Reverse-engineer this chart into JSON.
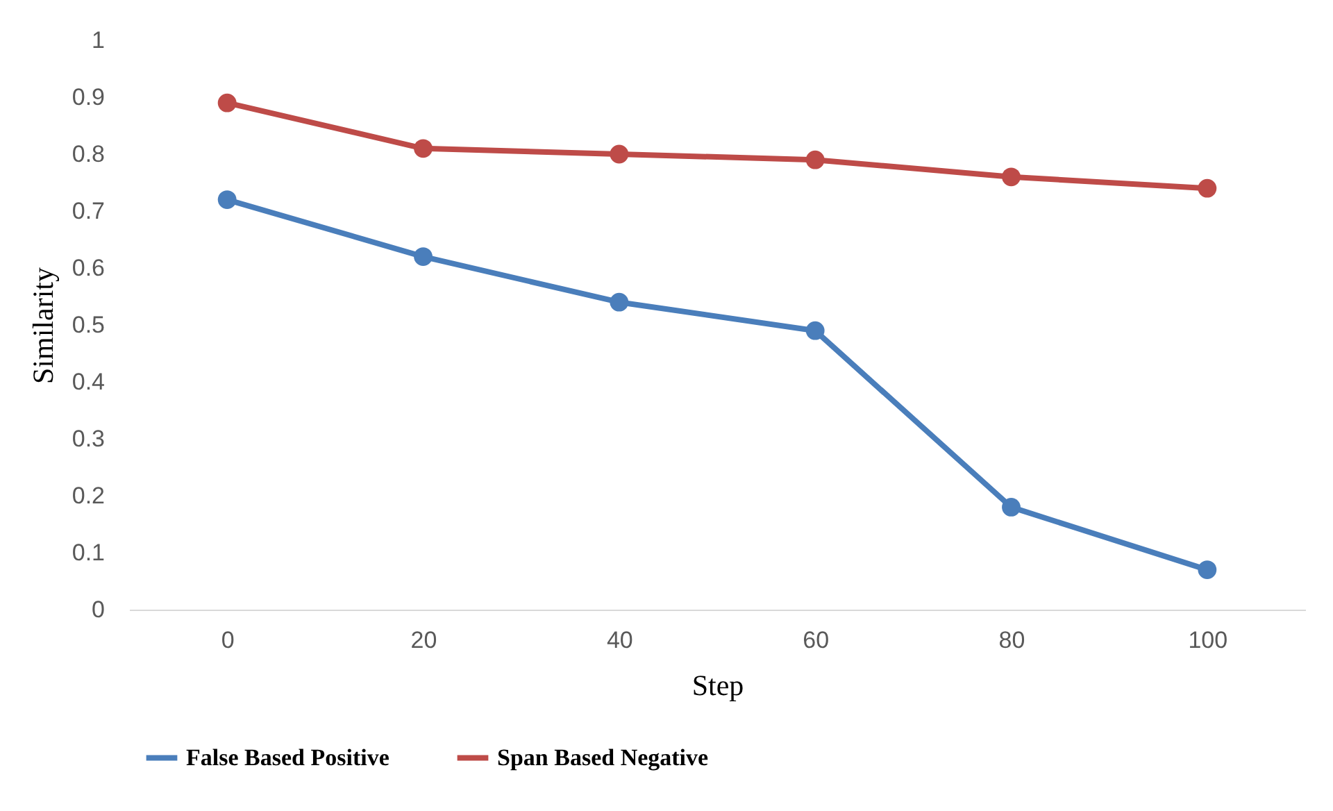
{
  "chart_data": {
    "type": "line",
    "xlabel": "Step",
    "ylabel": "Similarity",
    "categories": [
      "0",
      "20",
      "40",
      "60",
      "80",
      "100"
    ],
    "series": [
      {
        "name": "False Based Positive",
        "color": "#4a7ebb",
        "values": [
          0.72,
          0.62,
          0.54,
          0.49,
          0.18,
          0.07
        ]
      },
      {
        "name": "Span Based Negative",
        "color": "#be4b48",
        "values": [
          0.89,
          0.81,
          0.8,
          0.79,
          0.76,
          0.74
        ]
      }
    ],
    "ylim": [
      0,
      1
    ],
    "yticks": [
      0,
      0.1,
      0.2,
      0.3,
      0.4,
      0.5,
      0.6,
      0.7,
      0.8,
      0.9,
      1
    ],
    "grid": false,
    "legend": "bottom",
    "marker": "circle",
    "line_style": "solid"
  }
}
